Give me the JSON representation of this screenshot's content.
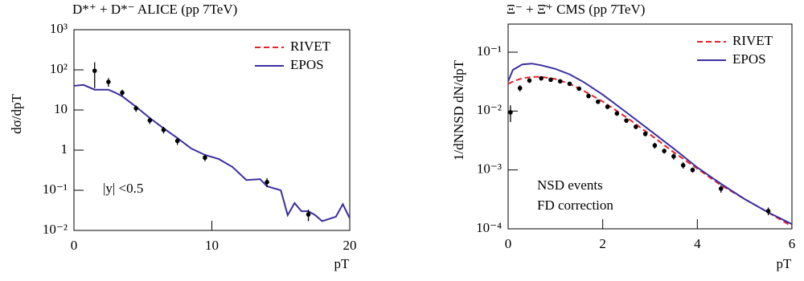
{
  "chart_data": [
    {
      "type": "line",
      "title": "D*⁺ + D*⁻ ALICE  (pp 7TeV)",
      "x_label": "pT",
      "y_label": "dσ/dpT",
      "log_y": true,
      "xlim": [
        0,
        20
      ],
      "xticks": [
        0,
        10,
        20
      ],
      "ylim": [
        0.01,
        1000
      ],
      "yticks": [
        {
          "value": 0.01,
          "label": "10⁻²"
        },
        {
          "value": 0.1,
          "label": "10⁻¹"
        },
        1,
        10,
        {
          "value": 100,
          "label": "10²"
        },
        {
          "value": 1000,
          "label": "10³"
        }
      ],
      "legend_corner": "upper right",
      "legend": [
        {
          "name": "RIVET",
          "color": "#e8202a",
          "dashed": true
        },
        {
          "name": "EPOS",
          "color": "#3a2fa0",
          "dashed": false
        }
      ],
      "series": [
        {
          "name": "EPOS",
          "color": "#3a2fa0",
          "dashed": false,
          "x": [
            0,
            0.7,
            1.5,
            2.5,
            3,
            3.5,
            4.5,
            5.5,
            6.5,
            7.5,
            8.5,
            9.5,
            10.5,
            11.5,
            12.5,
            13.5,
            14,
            15,
            15.5,
            16,
            16.5,
            17,
            17.5,
            18,
            19,
            19.5,
            20
          ],
          "values": [
            40,
            42,
            32,
            32,
            27,
            22,
            12,
            6.3,
            3.5,
            2,
            1.1,
            0.76,
            0.6,
            0.38,
            0.18,
            0.19,
            0.126,
            0.1,
            0.024,
            0.048,
            0.03,
            0.03,
            0.024,
            0.017,
            0.022,
            0.045,
            0.02
          ]
        }
      ],
      "points": {
        "color": "#000000",
        "x": [
          1.5,
          2.5,
          3.5,
          4.5,
          5.5,
          6.5,
          7.5,
          9.5,
          14,
          17
        ],
        "values": [
          95,
          50,
          27,
          11,
          5.5,
          3.2,
          1.7,
          0.65,
          0.16,
          0.025
        ],
        "errors": [
          60,
          12,
          5,
          2,
          1,
          0.6,
          0.35,
          0.12,
          0.04,
          0.008
        ]
      },
      "annotations": [
        "|y| <0.5"
      ]
    },
    {
      "type": "line",
      "title": "Ξ⁻ + Ξ̄⁺ CMS  (pp 7TeV)",
      "x_label": "pT",
      "y_label": "1/dNNSD dN/dpT",
      "log_y": true,
      "xlim": [
        0,
        6
      ],
      "xticks": [
        0,
        2,
        4,
        6
      ],
      "ylim": [
        0.0001,
        0.3
      ],
      "yticks": [
        {
          "value": 0.0001,
          "label": "10⁻⁴"
        },
        {
          "value": 0.001,
          "label": "10⁻³"
        },
        {
          "value": 0.01,
          "label": "10⁻²"
        },
        {
          "value": 0.1,
          "label": "10⁻¹"
        }
      ],
      "legend_corner": "upper right",
      "legend": [
        {
          "name": "RIVET",
          "color": "#e8202a",
          "dashed": true
        },
        {
          "name": "EPOS",
          "color": "#3a2fa0",
          "dashed": false
        }
      ],
      "series": [
        {
          "name": "RIVET",
          "color": "#e8202a",
          "dashed": true,
          "x": [
            0,
            0.15,
            0.3,
            0.5,
            0.7,
            1.0,
            1.3,
            1.6,
            2.0,
            2.5,
            3.0,
            3.5,
            4.0,
            4.5,
            5.0,
            5.5,
            6.0
          ],
          "values": [
            0.029,
            0.033,
            0.036,
            0.038,
            0.038,
            0.035,
            0.029,
            0.022,
            0.0145,
            0.0078,
            0.004,
            0.002,
            0.00105,
            0.00055,
            0.00032,
            0.00019,
            0.00011
          ]
        },
        {
          "name": "EPOS",
          "color": "#3a2fa0",
          "dashed": false,
          "x": [
            0,
            0.1,
            0.3,
            0.5,
            0.7,
            1.0,
            1.3,
            1.6,
            2.0,
            2.5,
            3.0,
            3.5,
            4.0,
            4.5,
            5.0,
            5.5,
            6.0
          ],
          "values": [
            0.032,
            0.05,
            0.062,
            0.064,
            0.06,
            0.052,
            0.042,
            0.031,
            0.019,
            0.0095,
            0.0047,
            0.0023,
            0.0011,
            0.00058,
            0.00032,
            0.00019,
            0.00012
          ]
        }
      ],
      "points": {
        "color": "#000000",
        "x": [
          0.05,
          0.25,
          0.45,
          0.7,
          0.9,
          1.1,
          1.3,
          1.5,
          1.7,
          1.9,
          2.1,
          2.3,
          2.5,
          2.7,
          2.9,
          3.1,
          3.3,
          3.5,
          3.7,
          3.9,
          4.5,
          5.5
        ],
        "values": [
          0.0095,
          0.0245,
          0.033,
          0.036,
          0.034,
          0.032,
          0.029,
          0.024,
          0.018,
          0.0144,
          0.0118,
          0.0091,
          0.0069,
          0.0054,
          0.0041,
          0.0026,
          0.0021,
          0.0017,
          0.0012,
          0.001,
          0.00048,
          0.0002
        ],
        "errors": [
          0.003,
          0.003,
          0.003,
          0.003,
          0.002,
          0.002,
          0.002,
          0.0015,
          0.0015,
          0.001,
          0.001,
          0.0008,
          0.0006,
          0.0005,
          0.0004,
          0.0003,
          0.0002,
          0.0002,
          0.00015,
          0.0001,
          7e-05,
          3e-05
        ]
      },
      "annotations": [
        "NSD events",
        "FD correction"
      ]
    }
  ]
}
